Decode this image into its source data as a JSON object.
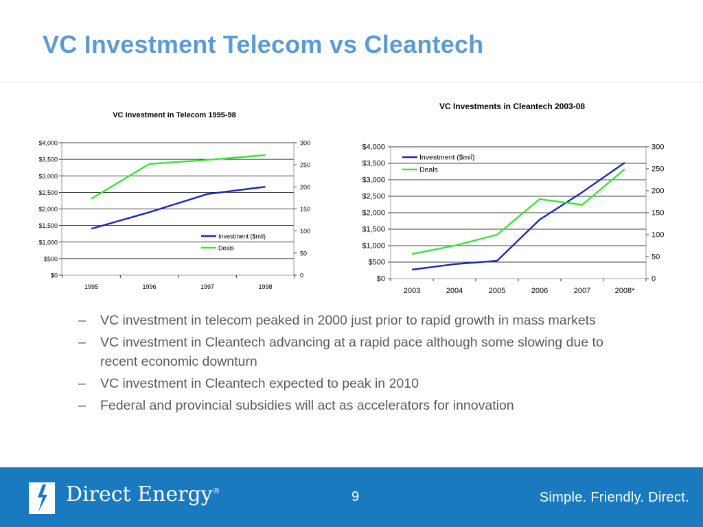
{
  "slide": {
    "title": "VC Investment Telecom vs Cleantech",
    "bullets": [
      "VC investment in telecom peaked in 2000 just prior to rapid growth in mass markets",
      "VC investment in Cleantech advancing at a rapid pace although some slowing due to recent economic downturn",
      "VC investment in Cleantech expected to peak in 2010",
      "Federal and provincial subsidies will act as accelerators for innovation"
    ],
    "bullet_marker": "–"
  },
  "footer": {
    "logo_text": "Direct Energy",
    "logo_mark": "®",
    "page_number": "9",
    "tagline": "Simple.  Friendly.  Direct."
  },
  "colors": {
    "title": "#5b9bd5",
    "investment_line": "#1a24c0",
    "deals_line": "#33e633",
    "footer_bg": "#1a7ac0"
  },
  "chart_data": [
    {
      "type": "line",
      "title": "VC Investment in Telecom 1995-98",
      "categories": [
        "1995",
        "1996",
        "1997",
        "1998"
      ],
      "y_left_ticks": [
        "$0",
        "$500",
        "$1,000",
        "$1,500",
        "$2,000",
        "$2,500",
        "$3,000",
        "$3,500",
        "$4,000"
      ],
      "y_right_ticks": [
        "0",
        "50",
        "100",
        "150",
        "200",
        "250",
        "300"
      ],
      "ylim_left": [
        0,
        4000
      ],
      "ylim_right": [
        0,
        300
      ],
      "grid": true,
      "legend_position": "center-right",
      "series": [
        {
          "name": "Investment ($mil)",
          "axis": "left",
          "color": "#1a24c0",
          "values": [
            1400,
            1900,
            2450,
            2670
          ]
        },
        {
          "name": "Deals",
          "axis": "right",
          "color": "#33e633",
          "values": [
            173,
            252,
            261,
            272
          ]
        }
      ]
    },
    {
      "type": "line",
      "title": "VC Investments in Cleantech 2003-08",
      "categories": [
        "2003",
        "2004",
        "2005",
        "2006",
        "2007",
        "2008*"
      ],
      "y_left_ticks": [
        "$0",
        "$500",
        "$1,000",
        "$1,500",
        "$2,000",
        "$2,500",
        "$3,000",
        "$3,500",
        "$4,000"
      ],
      "y_right_ticks": [
        "0",
        "50",
        "100",
        "150",
        "200",
        "250",
        "300"
      ],
      "ylim_left": [
        0,
        4000
      ],
      "ylim_right": [
        0,
        300
      ],
      "grid": true,
      "legend_position": "top-left",
      "series": [
        {
          "name": "Investment ($mil)",
          "axis": "left",
          "color": "#1a24c0",
          "values": [
            270,
            440,
            540,
            1790,
            2620,
            3520
          ]
        },
        {
          "name": "Deals",
          "axis": "right",
          "color": "#33e633",
          "values": [
            56,
            75,
            100,
            181,
            168,
            249
          ]
        }
      ]
    }
  ]
}
